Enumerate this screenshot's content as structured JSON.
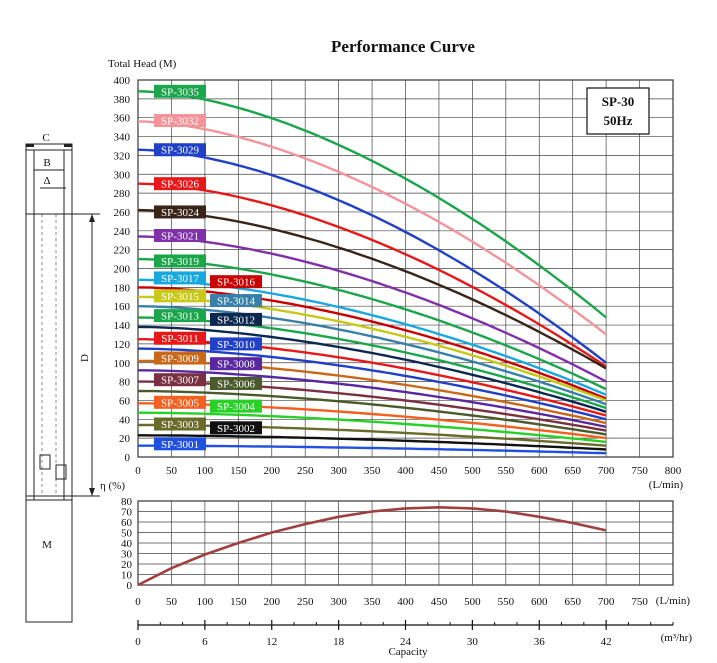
{
  "chart_data": [
    {
      "type": "line",
      "title": "Performance Curve",
      "ylabel": "Total Head (M)",
      "xlabel": "(L/min)",
      "xlim": [
        0,
        800
      ],
      "ylim": [
        0,
        400
      ],
      "x_ticks": [
        0,
        50,
        100,
        150,
        200,
        250,
        300,
        350,
        400,
        450,
        500,
        550,
        600,
        650,
        700,
        750,
        800
      ],
      "y_ticks": [
        0,
        20,
        40,
        60,
        80,
        100,
        120,
        140,
        160,
        180,
        200,
        220,
        240,
        260,
        280,
        300,
        320,
        340,
        360,
        380,
        400
      ],
      "grid": true,
      "badge": [
        "SP-30",
        "50Hz"
      ],
      "x": [
        0,
        700
      ],
      "series": [
        {
          "name": "SP-3035",
          "values": [
            388,
            148
          ],
          "color": "#1aa64a",
          "label_side": "left",
          "label_head": 388
        },
        {
          "name": "SP-3032",
          "values": [
            356,
            130
          ],
          "color": "#f4949a",
          "label_side": "left",
          "label_head": 357
        },
        {
          "name": "SP-3029",
          "values": [
            326,
            100
          ],
          "color": "#2040c8",
          "label_side": "left",
          "label_head": 326
        },
        {
          "name": "SP-3026",
          "values": [
            290,
            96
          ],
          "color": "#e81818",
          "label_side": "left",
          "label_head": 290
        },
        {
          "name": "SP-3024",
          "values": [
            262,
            94
          ],
          "color": "#3a2418",
          "label_side": "left",
          "label_head": 260
        },
        {
          "name": "SP-3021",
          "values": [
            234,
            80
          ],
          "color": "#8030a8",
          "label_side": "left",
          "label_head": 235
        },
        {
          "name": "SP-3019",
          "values": [
            210,
            72
          ],
          "color": "#1aa64a",
          "label_side": "left",
          "label_head": 208
        },
        {
          "name": "SP-3017",
          "values": [
            188,
            66
          ],
          "color": "#18a8e0",
          "label_side": "left",
          "label_head": 190
        },
        {
          "name": "SP-3016",
          "values": [
            180,
            62
          ],
          "color": "#c80000",
          "label_side": "right",
          "label_head": 186
        },
        {
          "name": "SP-3015",
          "values": [
            170,
            60
          ],
          "color": "#c8c818",
          "label_side": "left",
          "label_head": 171
        },
        {
          "name": "SP-3014",
          "values": [
            160,
            56
          ],
          "color": "#3880a8",
          "label_side": "right",
          "label_head": 166
        },
        {
          "name": "SP-3013",
          "values": [
            148,
            52
          ],
          "color": "#1aa64a",
          "label_side": "left",
          "label_head": 150
        },
        {
          "name": "SP-3012",
          "values": [
            138,
            48
          ],
          "color": "#0c2850",
          "label_side": "right",
          "label_head": 146
        },
        {
          "name": "SP-3011",
          "values": [
            125,
            44
          ],
          "color": "#e81818",
          "label_side": "left",
          "label_head": 126
        },
        {
          "name": "SP-3010",
          "values": [
            115,
            40
          ],
          "color": "#2040c8",
          "label_side": "right",
          "label_head": 120
        },
        {
          "name": "SP-3009",
          "values": [
            102,
            36
          ],
          "color": "#c86818",
          "label_side": "left",
          "label_head": 105
        },
        {
          "name": "SP-3008",
          "values": [
            92,
            32
          ],
          "color": "#5828a0",
          "label_side": "right",
          "label_head": 99
        },
        {
          "name": "SP-3007",
          "values": [
            80,
            28
          ],
          "color": "#7a3040",
          "label_side": "left",
          "label_head": 82
        },
        {
          "name": "SP-3006",
          "values": [
            70,
            24
          ],
          "color": "#4a5a2a",
          "label_side": "right",
          "label_head": 78
        },
        {
          "name": "SP-3005",
          "values": [
            57,
            20
          ],
          "color": "#f46020",
          "label_side": "left",
          "label_head": 58
        },
        {
          "name": "SP-3004",
          "values": [
            47,
            16
          ],
          "color": "#28d028",
          "label_side": "right",
          "label_head": 54
        },
        {
          "name": "SP-3003",
          "values": [
            34,
            12
          ],
          "color": "#6a6a2a",
          "label_side": "left",
          "label_head": 35
        },
        {
          "name": "SP-3002",
          "values": [
            23,
            8
          ],
          "color": "#101010",
          "label_side": "right",
          "label_head": 31
        },
        {
          "name": "SP-3001",
          "values": [
            12,
            4
          ],
          "color": "#2050e0",
          "label_side": "left",
          "label_head": 14
        }
      ]
    },
    {
      "type": "line",
      "ylabel": "η (%)",
      "xlabel": "(L/min)",
      "xlim": [
        0,
        800
      ],
      "ylim": [
        0,
        80
      ],
      "x_ticks": [
        0,
        50,
        100,
        150,
        200,
        250,
        300,
        350,
        400,
        450,
        500,
        550,
        600,
        650,
        700,
        750
      ],
      "y_ticks": [
        0,
        10,
        20,
        30,
        40,
        50,
        60,
        70,
        80
      ],
      "grid": true,
      "series": [
        {
          "x": [
            0,
            50,
            100,
            150,
            200,
            250,
            300,
            350,
            400,
            450,
            500,
            550,
            600,
            650,
            700
          ],
          "values": [
            0,
            16,
            29,
            40,
            50,
            58,
            65,
            70,
            73,
            74,
            73,
            70,
            65,
            59,
            52
          ],
          "color": "#a04040"
        }
      ]
    },
    {
      "type": "axis",
      "xlabel": "Capacity",
      "unit": "(m³/hr)",
      "ticks": [
        0,
        6,
        12,
        18,
        24,
        30,
        36,
        42
      ],
      "xlim": [
        0,
        48
      ]
    }
  ],
  "diagram": {
    "labels": {
      "c": "C",
      "b": "B",
      "delta": "Δ",
      "d": "D",
      "m": "M"
    }
  }
}
